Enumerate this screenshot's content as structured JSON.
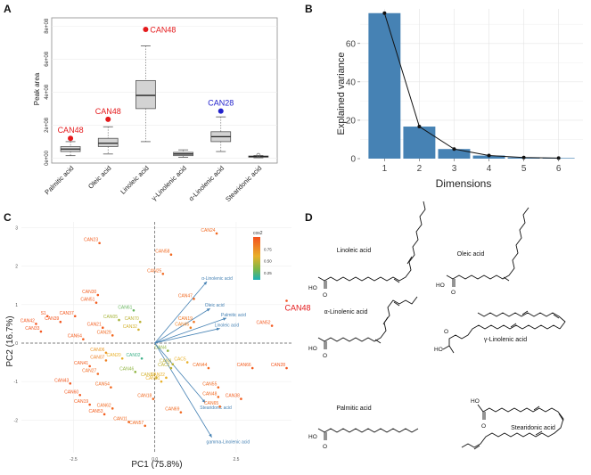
{
  "panels": {
    "a": "A",
    "b": "B",
    "c": "C",
    "d": "D"
  },
  "chart_data": [
    {
      "panel": "A",
      "type": "box",
      "title": "",
      "xlabel": "",
      "ylabel": "Peak area",
      "ylim": [
        0,
        800000000
      ],
      "yticks": [
        0,
        200000000,
        400000000,
        600000000,
        800000000
      ],
      "yticklabels": [
        "0e+00",
        "2e+08",
        "4e+08",
        "6e+08",
        "8e+08"
      ],
      "categories": [
        "Palmitic acid",
        "Oleic acid",
        "Linoleic acid",
        "γ-Linolenic acid",
        "α-Linolenic acid",
        "Stearidonic acid"
      ],
      "boxes": [
        {
          "whisker_low": 15000000,
          "q1": 40000000,
          "median": 55000000,
          "q3": 70000000,
          "whisker_high": 100000000
        },
        {
          "whisker_low": 25000000,
          "q1": 70000000,
          "median": 90000000,
          "q3": 120000000,
          "whisker_high": 190000000
        },
        {
          "whisker_low": 100000000,
          "q1": 300000000,
          "median": 380000000,
          "q3": 470000000,
          "whisker_high": 680000000
        },
        {
          "whisker_low": 5000000,
          "q1": 15000000,
          "median": 25000000,
          "q3": 35000000,
          "whisker_high": 50000000
        },
        {
          "whisker_low": 40000000,
          "q1": 100000000,
          "median": 130000000,
          "q3": 160000000,
          "whisker_high": 250000000
        },
        {
          "whisker_low": 2000000,
          "q1": 6000000,
          "median": 10000000,
          "q3": 13000000,
          "whisker_high": 16000000
        }
      ],
      "outliers": [
        {
          "category_index": 0,
          "value": 120000000,
          "label": "CAN48",
          "color": "#e41a1c"
        },
        {
          "category_index": 1,
          "value": 235000000,
          "label": "CAN48",
          "color": "#e41a1c"
        },
        {
          "category_index": 2,
          "value": 780000000,
          "label": "CAN48",
          "color": "#e41a1c"
        },
        {
          "category_index": 4,
          "value": 285000000,
          "label": "CAN28",
          "color": "#2222cc"
        },
        {
          "category_index": 5,
          "value": 18000000,
          "label": "",
          "color": "#666666"
        }
      ]
    },
    {
      "panel": "B",
      "type": "bar",
      "title": "",
      "xlabel": "Dimensions",
      "ylabel": "Explained variance",
      "categories": [
        "1",
        "2",
        "3",
        "4",
        "5",
        "6"
      ],
      "values": [
        75.8,
        16.7,
        5.0,
        1.6,
        0.6,
        0.3
      ],
      "ylim": [
        0,
        78
      ],
      "yticks": [
        0,
        20,
        40,
        60
      ],
      "bar_color": "#4682b4"
    },
    {
      "panel": "C",
      "type": "scatter",
      "title": "",
      "xlabel": "PC1 (75.8%)",
      "ylabel": "PC2 (16.7%)",
      "xlim": [
        -4.1,
        4.2
      ],
      "ylim": [
        -2.85,
        3.15
      ],
      "xticks": [
        -2.5,
        0,
        2.5
      ],
      "xticklabels": [
        "-2.5",
        "0.0",
        "2.5"
      ],
      "yticks": [
        -2,
        -1,
        0,
        1,
        2,
        3
      ],
      "yticklabels": [
        "-2",
        "-1",
        "0",
        "1",
        "2",
        "3"
      ],
      "legend": {
        "title": "cos2",
        "labels": [
          "0.75",
          "0.50",
          "0.25"
        ],
        "values": [
          0.75,
          0.5,
          0.25
        ]
      },
      "points": [
        {
          "label": "CAN23",
          "x": -1.7,
          "y": 2.6,
          "cos2": 0.95
        },
        {
          "label": "CAN24",
          "x": 1.9,
          "y": 2.85,
          "cos2": 0.9
        },
        {
          "label": "CAN58",
          "x": 0.5,
          "y": 2.3,
          "cos2": 0.9
        },
        {
          "label": "CAN25",
          "x": 0.25,
          "y": 1.8,
          "cos2": 0.9
        },
        {
          "label": "CAN30",
          "x": -1.75,
          "y": 1.25,
          "cos2": 0.95
        },
        {
          "label": "CAN51",
          "x": -1.8,
          "y": 1.05,
          "cos2": 0.95
        },
        {
          "label": "CAN48",
          "x": 4.05,
          "y": 1.1,
          "cos2": 1.0
        },
        {
          "label": "CAN47",
          "x": 1.2,
          "y": 1.15,
          "cos2": 0.9
        },
        {
          "label": "S1",
          "x": -3.3,
          "y": 0.7,
          "cos2": 0.97
        },
        {
          "label": "CAN37",
          "x": -2.45,
          "y": 0.7,
          "cos2": 0.97
        },
        {
          "label": "CAN42",
          "x": -3.65,
          "y": 0.5,
          "cos2": 0.98
        },
        {
          "label": "CAN39",
          "x": -2.9,
          "y": 0.55,
          "cos2": 0.98
        },
        {
          "label": "CAN33",
          "x": -3.5,
          "y": 0.3,
          "cos2": 0.98
        },
        {
          "label": "CAN61",
          "x": -0.65,
          "y": 0.85,
          "cos2": 0.3
        },
        {
          "label": "CAN05",
          "x": -1.1,
          "y": 0.6,
          "cos2": 0.45
        },
        {
          "label": "CAN70",
          "x": -0.45,
          "y": 0.55,
          "cos2": 0.5
        },
        {
          "label": "CAN32",
          "x": -0.5,
          "y": 0.35,
          "cos2": 0.55
        },
        {
          "label": "CAN21",
          "x": -1.6,
          "y": 0.4,
          "cos2": 0.95
        },
        {
          "label": "CAN29",
          "x": -1.3,
          "y": 0.2,
          "cos2": 0.9
        },
        {
          "label": "CAN64",
          "x": -2.2,
          "y": 0.1,
          "cos2": 0.95
        },
        {
          "label": "CAN45",
          "x": 1.1,
          "y": 0.4,
          "cos2": 0.8
        },
        {
          "label": "CAN19",
          "x": 1.2,
          "y": 0.55,
          "cos2": 0.85
        },
        {
          "label": "CAN52",
          "x": 3.6,
          "y": 0.45,
          "cos2": 0.97
        },
        {
          "label": "CAN06",
          "x": -1.5,
          "y": -0.25,
          "cos2": 0.7
        },
        {
          "label": "CAN07",
          "x": -1.5,
          "y": -0.45,
          "cos2": 0.8
        },
        {
          "label": "CAN02",
          "x": -0.4,
          "y": -0.4,
          "cos2": 0.2
        },
        {
          "label": "CAN20",
          "x": -1.0,
          "y": -0.4,
          "cos2": 0.6
        },
        {
          "label": "CAN41",
          "x": -2.0,
          "y": -0.6,
          "cos2": 0.95
        },
        {
          "label": "CAN27",
          "x": -1.75,
          "y": -0.8,
          "cos2": 0.9
        },
        {
          "label": "CAN46",
          "x": -0.6,
          "y": -0.75,
          "cos2": 0.4
        },
        {
          "label": "CAN43",
          "x": -2.6,
          "y": -1.05,
          "cos2": 0.97
        },
        {
          "label": "CAN60",
          "x": -2.3,
          "y": -1.35,
          "cos2": 0.97
        },
        {
          "label": "CAN54",
          "x": -1.35,
          "y": -1.15,
          "cos2": 0.9
        },
        {
          "label": "CAN18",
          "x": -0.05,
          "y": -1.45,
          "cos2": 0.9
        },
        {
          "label": "CAN19",
          "x": -2.0,
          "y": -1.6,
          "cos2": 0.95
        },
        {
          "label": "CAN62",
          "x": -1.3,
          "y": -1.7,
          "cos2": 0.9
        },
        {
          "label": "CAN53",
          "x": -1.55,
          "y": -1.85,
          "cos2": 0.95
        },
        {
          "label": "CAN11",
          "x": -0.8,
          "y": -2.05,
          "cos2": 0.9
        },
        {
          "label": "CAN57",
          "x": -0.3,
          "y": -2.15,
          "cos2": 0.9
        },
        {
          "label": "CAN69",
          "x": 0.8,
          "y": -1.8,
          "cos2": 0.9
        },
        {
          "label": "CAN31",
          "x": 0.2,
          "y": -1.0,
          "cos2": 0.6
        },
        {
          "label": "CAN34",
          "x": 0.05,
          "y": -0.9,
          "cos2": 0.55
        },
        {
          "label": "CAN22",
          "x": 0.35,
          "y": -0.9,
          "cos2": 0.6
        },
        {
          "label": "CAN4",
          "x": 0.4,
          "y": -0.2,
          "cos2": 0.4
        },
        {
          "label": "CAN3",
          "x": 0.55,
          "y": -0.55,
          "cos2": 0.5
        },
        {
          "label": "CAC5",
          "x": 1.0,
          "y": -0.5,
          "cos2": 0.6
        },
        {
          "label": "CAC2",
          "x": 0.5,
          "y": -0.65,
          "cos2": 0.5
        },
        {
          "label": "CAN44",
          "x": 1.65,
          "y": -0.65,
          "cos2": 0.9
        },
        {
          "label": "CAN55",
          "x": 1.95,
          "y": -1.15,
          "cos2": 0.9
        },
        {
          "label": "CAN48",
          "x": 1.95,
          "y": -1.4,
          "cos2": 0.9
        },
        {
          "label": "CAN65",
          "x": 2.0,
          "y": -1.65,
          "cos2": 0.9
        },
        {
          "label": "CAN38",
          "x": 2.65,
          "y": -1.45,
          "cos2": 0.95
        },
        {
          "label": "CAN66",
          "x": 3.0,
          "y": -0.65,
          "cos2": 0.95
        },
        {
          "label": "CAN28",
          "x": 4.05,
          "y": -0.65,
          "cos2": 0.98
        }
      ],
      "loadings": [
        {
          "label": "α-Linolenic acid",
          "x": 1.6,
          "y": 1.6
        },
        {
          "label": "Oleic acid",
          "x": 1.7,
          "y": 0.9
        },
        {
          "label": "Palmitic acid",
          "x": 2.2,
          "y": 0.65
        },
        {
          "label": "Linoleic acid",
          "x": 2.0,
          "y": 0.38
        },
        {
          "label": "Stearidonic acid",
          "x": 1.55,
          "y": -1.55
        },
        {
          "label": "gamma-Linolenic acid",
          "x": 1.75,
          "y": -2.45
        }
      ]
    }
  ],
  "structures": [
    {
      "name": "Linoleic acid"
    },
    {
      "name": "Oleic acid"
    },
    {
      "name": "α-Linolenic acid"
    },
    {
      "name": "γ-Linolenic acid"
    },
    {
      "name": "Palmitic acid"
    },
    {
      "name": "Stearidonic acid"
    }
  ],
  "atoms": {
    "ho": "HO",
    "o": "O"
  }
}
